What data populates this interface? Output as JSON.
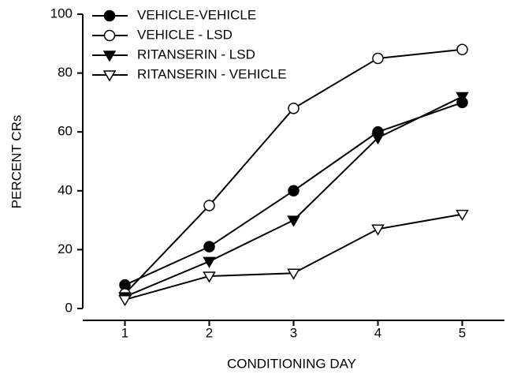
{
  "chart_data": {
    "type": "line",
    "xlabel": "CONDITIONING DAY",
    "ylabel": "PERCENT CRs",
    "x": [
      1,
      2,
      3,
      4,
      5
    ],
    "series": [
      {
        "name": "VEHICLE-VEHICLE",
        "color": "#000000",
        "marker": "circle",
        "filled": true,
        "values": [
          8,
          21,
          40,
          60,
          70
        ]
      },
      {
        "name": "VEHICLE - LSD",
        "color": "#000000",
        "marker": "circle",
        "filled": false,
        "values": [
          5,
          35,
          68,
          85,
          88
        ]
      },
      {
        "name": "RITANSERIN - LSD",
        "color": "#000000",
        "marker": "triangle-down",
        "filled": true,
        "values": [
          4,
          16,
          30,
          58,
          72
        ]
      },
      {
        "name": "RITANSERIN - VEHICLE",
        "color": "#000000",
        "marker": "triangle-down",
        "filled": false,
        "values": [
          3,
          11,
          12,
          27,
          32
        ]
      }
    ],
    "xlim": [
      0.5,
      5.5
    ],
    "xticks": [
      1,
      2,
      3,
      4,
      5
    ],
    "ylim": [
      0,
      100
    ],
    "yticks": [
      0,
      20,
      40,
      60,
      80,
      100
    ],
    "legend": "upper left"
  }
}
